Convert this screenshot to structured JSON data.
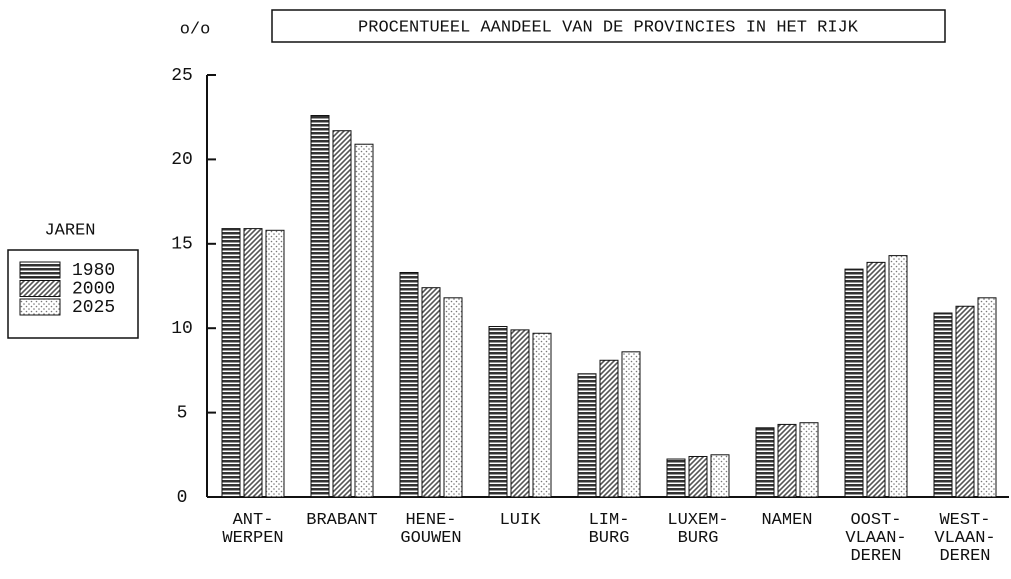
{
  "chart_data": {
    "type": "bar",
    "title": "PROCENTUEEL AANDEEL VAN DE PROVINCIES IN HET RIJK",
    "y_label": "o/o",
    "legend_title": "JAREN",
    "legend": "left",
    "categories": [
      "ANT-\nWERPEN",
      "BRABANT",
      "HENE-\nGOUWEN",
      "LUIK",
      "LIM-\nBURG",
      "LUXEM-\nBURG",
      "NAMEN",
      "OOST-\nVLAAN-\nDEREN",
      "WEST-\nVLAAN-\nDEREN"
    ],
    "series": [
      {
        "name": "1980",
        "color": "#333333",
        "values": [
          15.9,
          22.6,
          13.3,
          10.1,
          7.3,
          2.25,
          4.1,
          13.5,
          10.9
        ]
      },
      {
        "name": "2000",
        "color": "#555555",
        "values": [
          15.9,
          21.7,
          12.4,
          9.9,
          8.1,
          2.4,
          4.3,
          13.9,
          11.3
        ]
      },
      {
        "name": "2025",
        "color": "#777777",
        "values": [
          15.8,
          20.9,
          11.8,
          9.7,
          8.6,
          2.5,
          4.4,
          14.3,
          11.8
        ]
      }
    ],
    "ylim": [
      0,
      25
    ],
    "yticks": [
      0,
      5,
      10,
      15,
      20,
      25
    ]
  }
}
